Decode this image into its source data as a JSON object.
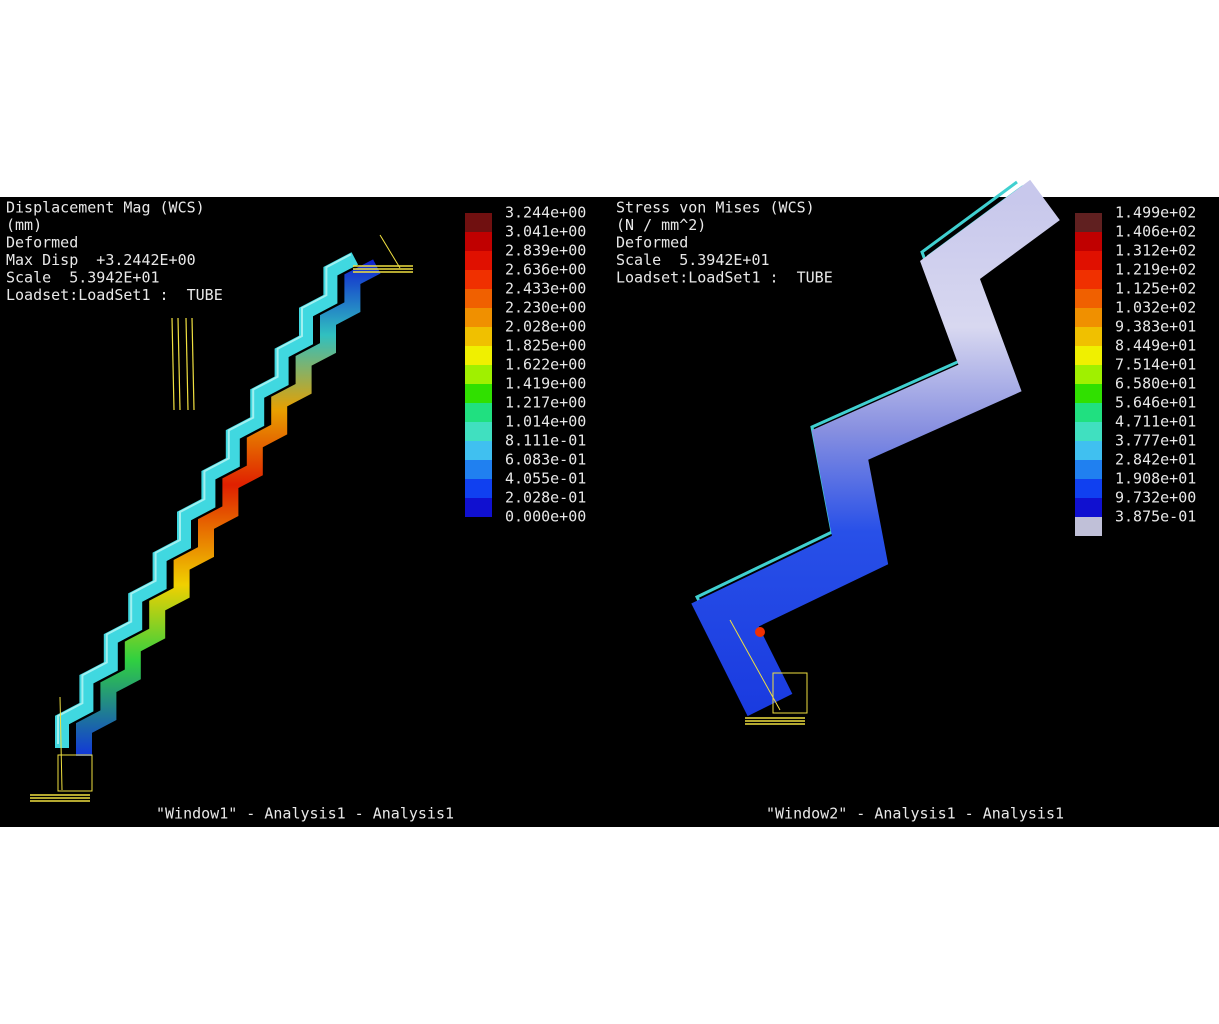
{
  "windows": [
    {
      "header": [
        "Displacement Mag (WCS)",
        "(mm)",
        "Deformed",
        "Max Disp  +3.2442E+00",
        "Scale  5.3942E+01",
        "Loadset:LoadSet1 :  TUBE"
      ],
      "legend": [
        "3.244e+00",
        "3.041e+00",
        "2.839e+00",
        "2.636e+00",
        "2.433e+00",
        "2.230e+00",
        "2.028e+00",
        "1.825e+00",
        "1.622e+00",
        "1.419e+00",
        "1.217e+00",
        "1.014e+00",
        "8.111e-01",
        "6.083e-01",
        "4.055e-01",
        "2.028e-01",
        "0.000e+00"
      ],
      "footer": "\"Window1\" - Analysis1 - Analysis1"
    },
    {
      "header": [
        "Stress von Mises (WCS)",
        "(N / mm^2)",
        "Deformed",
        "Scale  5.3942E+01",
        "Loadset:LoadSet1 :  TUBE"
      ],
      "legend": [
        "1.499e+02",
        "1.406e+02",
        "1.312e+02",
        "1.219e+02",
        "1.125e+02",
        "1.032e+02",
        "9.383e+01",
        "8.449e+01",
        "7.514e+01",
        "6.580e+01",
        "5.646e+01",
        "4.711e+01",
        "3.777e+01",
        "2.842e+01",
        "1.908e+01",
        "9.732e+00",
        "3.875e-01"
      ],
      "footer": "\"Window2\" - Analysis1 - Analysis1"
    }
  ]
}
